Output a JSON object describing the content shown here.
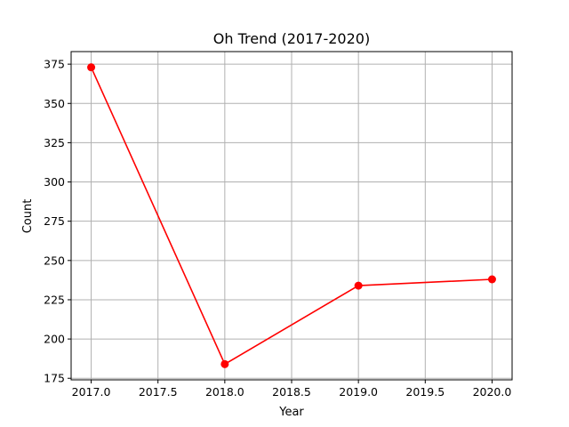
{
  "chart_data": {
    "type": "line",
    "title": "Oh Trend (2017-2020)",
    "xlabel": "Year",
    "ylabel": "Count",
    "x": [
      2017,
      2018,
      2019,
      2020
    ],
    "series": [
      {
        "values": [
          373,
          184,
          234,
          238
        ],
        "color": "#ff0000",
        "marker": "circle"
      }
    ],
    "xlim": [
      2016.85,
      2020.15
    ],
    "ylim": [
      174,
      383
    ],
    "xticks": [
      2017.0,
      2017.5,
      2018.0,
      2018.5,
      2019.0,
      2019.5,
      2020.0
    ],
    "xtick_labels": [
      "2017.0",
      "2017.5",
      "2018.0",
      "2018.5",
      "2019.0",
      "2019.5",
      "2020.0"
    ],
    "yticks": [
      175,
      200,
      225,
      250,
      275,
      300,
      325,
      350,
      375
    ],
    "ytick_labels": [
      "175",
      "200",
      "225",
      "250",
      "275",
      "300",
      "325",
      "350",
      "375"
    ],
    "grid": true
  }
}
